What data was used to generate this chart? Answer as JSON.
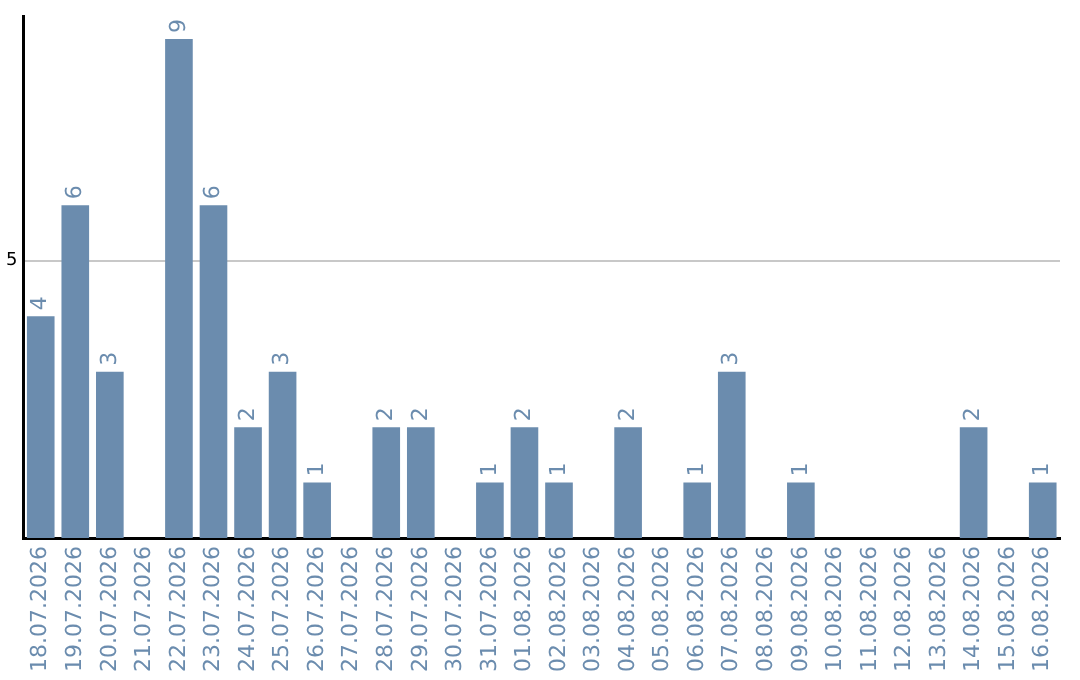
{
  "chart_data": {
    "type": "bar",
    "categories": [
      "18.07.2026",
      "19.07.2026",
      "20.07.2026",
      "21.07.2026",
      "22.07.2026",
      "23.07.2026",
      "24.07.2026",
      "25.07.2026",
      "26.07.2026",
      "27.07.2026",
      "28.07.2026",
      "29.07.2026",
      "30.07.2026",
      "31.07.2026",
      "01.08.2026",
      "02.08.2026",
      "03.08.2026",
      "04.08.2026",
      "05.08.2026",
      "06.08.2026",
      "07.08.2026",
      "08.08.2026",
      "09.08.2026",
      "10.08.2026",
      "11.08.2026",
      "12.08.2026",
      "13.08.2026",
      "14.08.2026",
      "15.08.2026",
      "16.08.2026"
    ],
    "values": [
      4,
      6,
      3,
      null,
      9,
      6,
      2,
      3,
      1,
      null,
      2,
      2,
      null,
      1,
      2,
      1,
      null,
      2,
      null,
      1,
      3,
      null,
      1,
      null,
      null,
      null,
      null,
      2,
      null,
      1
    ],
    "color": "#6b8cae",
    "ylim": [
      0,
      9.4
    ],
    "yticks": [
      5
    ],
    "grid": "y",
    "data_labels": true,
    "legend": false
  }
}
